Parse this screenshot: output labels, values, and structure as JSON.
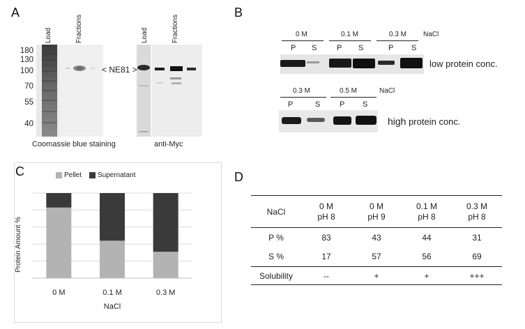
{
  "panelA": {
    "letter": "A",
    "coomassie_lanes": {
      "load": "Load",
      "fractions": "Fractions"
    },
    "myc_lanes": {
      "load": "Load",
      "fractions": "Fractions"
    },
    "markers": [
      "180",
      "130",
      "100",
      "70",
      "55",
      "40"
    ],
    "band_label": "< NE81 >",
    "coomassie_caption": "Coomassie blue staining",
    "myc_caption": "anti-Myc"
  },
  "panelB": {
    "letter": "B",
    "top": {
      "conditions": [
        "0 M",
        "0.1 M",
        "0.3 M"
      ],
      "salt": "NaCl",
      "lanes": [
        "P",
        "S",
        "P",
        "S",
        "P",
        "S"
      ],
      "caption": "low protein conc."
    },
    "bottom": {
      "conditions": [
        "0.3 M",
        "0.5 M"
      ],
      "salt": "NaCl",
      "lanes": [
        "P",
        "S",
        "P",
        "S"
      ],
      "caption_bold": "high",
      "caption_rest": " protein conc."
    }
  },
  "panelC": {
    "letter": "C",
    "colors": {
      "pellet": "#b3b3b3",
      "supernatant": "#3a3a3a"
    },
    "chart_data": {
      "type": "bar",
      "stacked": true,
      "categories": [
        "0 M",
        "0.1 M",
        "0.3 M"
      ],
      "series": [
        {
          "name": "Pellet",
          "values": [
            83,
            44,
            31
          ]
        },
        {
          "name": "Supernatant",
          "values": [
            17,
            56,
            69
          ]
        }
      ],
      "xlabel": "NaCl",
      "ylabel": "Protein Amount %",
      "ylim": [
        0,
        100
      ],
      "grid": true,
      "legend": "top"
    }
  },
  "panelD": {
    "letter": "D",
    "header": {
      "label": "NaCl",
      "cols": [
        {
          "line1": "0 M",
          "line2": "pH 8"
        },
        {
          "line1": "0 M",
          "line2": "pH 9"
        },
        {
          "line1": "0.1 M",
          "line2": "pH 8"
        },
        {
          "line1": "0.3 M",
          "line2": "pH 8"
        }
      ]
    },
    "rows": [
      {
        "label": "P %",
        "values": [
          "83",
          "43",
          "44",
          "31"
        ]
      },
      {
        "label": "S %",
        "values": [
          "17",
          "57",
          "56",
          "69"
        ]
      },
      {
        "label": "Solubility",
        "values": [
          "--",
          "+",
          "+",
          "+++"
        ]
      }
    ]
  }
}
